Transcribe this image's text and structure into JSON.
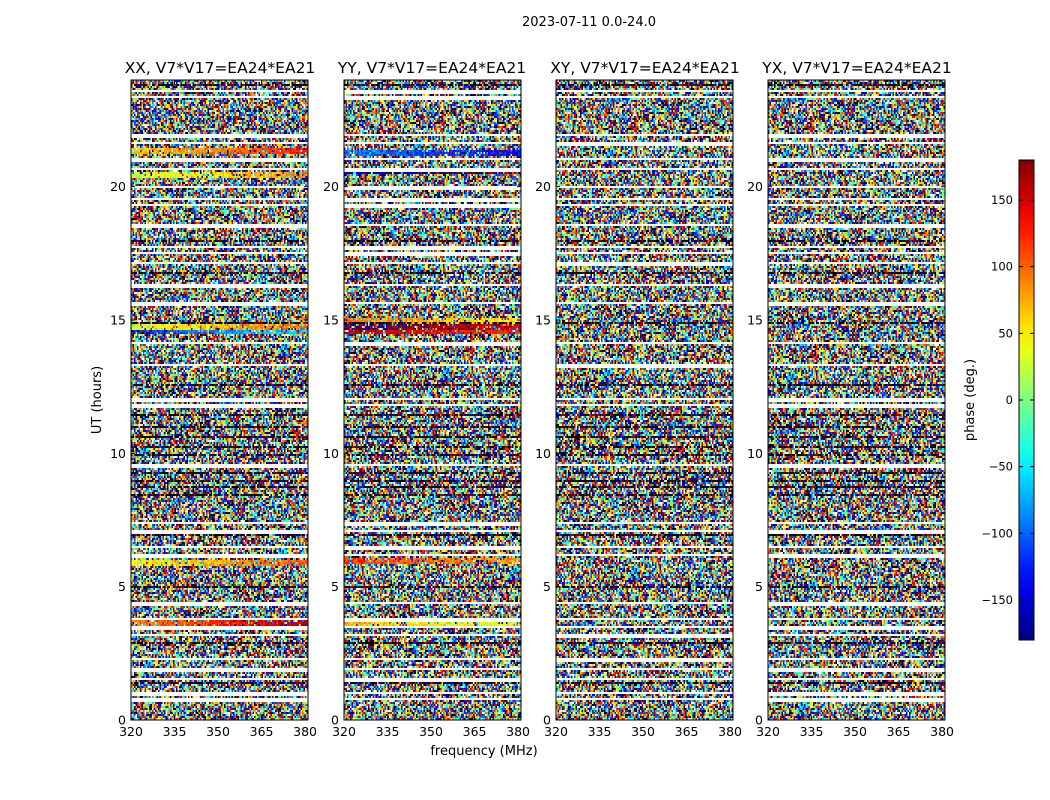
{
  "figure": {
    "suptitle": "2023-07-11 0.0-24.0"
  },
  "chart_data": {
    "type": "heatmap",
    "xlabel": "frequency (MHz)",
    "ylabel": "UT (hours)",
    "x_range": [
      320,
      381
    ],
    "y_range": [
      0,
      24
    ],
    "x_ticks": [
      320,
      335,
      350,
      365,
      380
    ],
    "y_ticks": [
      0,
      5,
      10,
      15,
      20
    ],
    "colorbar": {
      "label": "phase (deg.)",
      "range": [
        -180,
        180
      ],
      "ticks": [
        -150,
        -100,
        -50,
        0,
        50,
        100,
        150
      ],
      "colormap": "jet"
    },
    "panels": [
      {
        "title": "XX, V7*V17=EA24*EA21",
        "structured_bands": [
          {
            "ut": 20.5,
            "phase": 20
          },
          {
            "ut": 21.4,
            "phase": 60
          },
          {
            "ut": 14.8,
            "phase": 30
          },
          {
            "ut": 14.6,
            "phase": -120
          },
          {
            "ut": 5.9,
            "phase": 40
          },
          {
            "ut": 3.7,
            "phase": 90
          }
        ]
      },
      {
        "title": "YY, V7*V17=EA24*EA21",
        "structured_bands": [
          {
            "ut": 21.3,
            "phase": -90
          },
          {
            "ut": 20.6,
            "phase": -150
          },
          {
            "ut": 15.0,
            "phase": 90
          },
          {
            "ut": 14.8,
            "phase": -170
          },
          {
            "ut": 14.6,
            "phase": 160
          },
          {
            "ut": 6.0,
            "phase": 120
          },
          {
            "ut": 3.7,
            "phase": 70
          }
        ]
      },
      {
        "title": "XY, V7*V17=EA24*EA21",
        "structured_bands": []
      },
      {
        "title": "YX, V7*V17=EA24*EA21",
        "structured_bands": []
      }
    ],
    "flagged_rows_ut": [
      0.85,
      1.05,
      1.55,
      1.95,
      2.35,
      3.2,
      3.5,
      3.85,
      4.45,
      6.2,
      6.55,
      7.15,
      7.4,
      9.6,
      11.85,
      12.1,
      13.35,
      14.2,
      15.7,
      16.35,
      17.2,
      17.55,
      17.75,
      18.6,
      19.35,
      19.55,
      20.05,
      20.7,
      21.1,
      21.7,
      21.95,
      23.4,
      23.6
    ],
    "dark_rows_ut": [
      1.4,
      2.9,
      5.05,
      7.0,
      8.5,
      8.75,
      9.0,
      9.3,
      9.95,
      10.3,
      10.65,
      11.05,
      11.5,
      12.6,
      14.9,
      16.8,
      18.0,
      23.85
    ]
  }
}
